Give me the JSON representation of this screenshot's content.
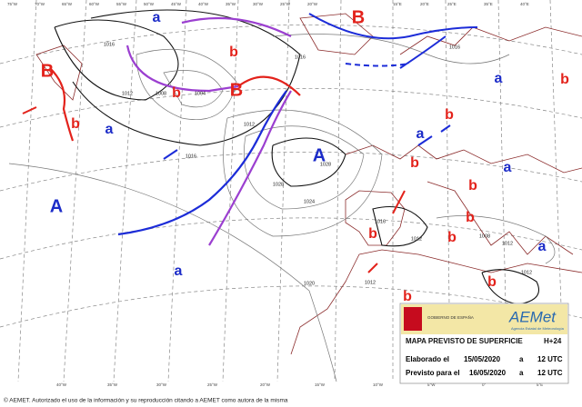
{
  "map": {
    "longitude_labels": [
      "75°W",
      "70°W",
      "65°W",
      "60°W",
      "55°W",
      "50°W",
      "45°W",
      "40°W",
      "35°W",
      "30°W",
      "25°W",
      "20°W",
      "15°E",
      "20°E",
      "25°E",
      "35°E",
      "40°E"
    ],
    "bottom_longitude_labels": [
      "40°W",
      "35°W",
      "30°W",
      "25°W",
      "20°W",
      "15°W",
      "10°W",
      "5°W",
      "0°",
      "5°E"
    ],
    "highs": [
      "a",
      "a",
      "A",
      "A",
      "a",
      "a",
      "a",
      "a",
      "a"
    ],
    "lows": [
      "B",
      "B",
      "B",
      "b",
      "b",
      "b",
      "b",
      "b",
      "b",
      "b",
      "b",
      "b",
      "b",
      "b",
      "b"
    ],
    "isobar_labels": [
      1016,
      1012,
      1008,
      1004,
      1012,
      1016,
      1028,
      1028,
      1024,
      1020,
      1016,
      1012,
      1012,
      1008,
      1012,
      1012,
      1016,
      1016
    ],
    "legend": {
      "government": "GOBIERNO DE ESPAÑA",
      "agency": "AEMet",
      "agency_subtitle": "Agencia Estatal de Meteorología",
      "title": "MAPA PREVISTO DE SUPERFICIE",
      "lead_time": "H+24",
      "made_label": "Elaborado el",
      "made_date": "15/05/2020",
      "made_at": "a",
      "made_time": "12 UTC",
      "valid_label": "Previsto para el",
      "valid_date": "16/05/2020",
      "valid_at": "a",
      "valid_time": "12 UTC"
    },
    "footer": "© AEMET. Autorizado el uso de la información y su reproducción citando a AEMET como autora de la misma"
  }
}
